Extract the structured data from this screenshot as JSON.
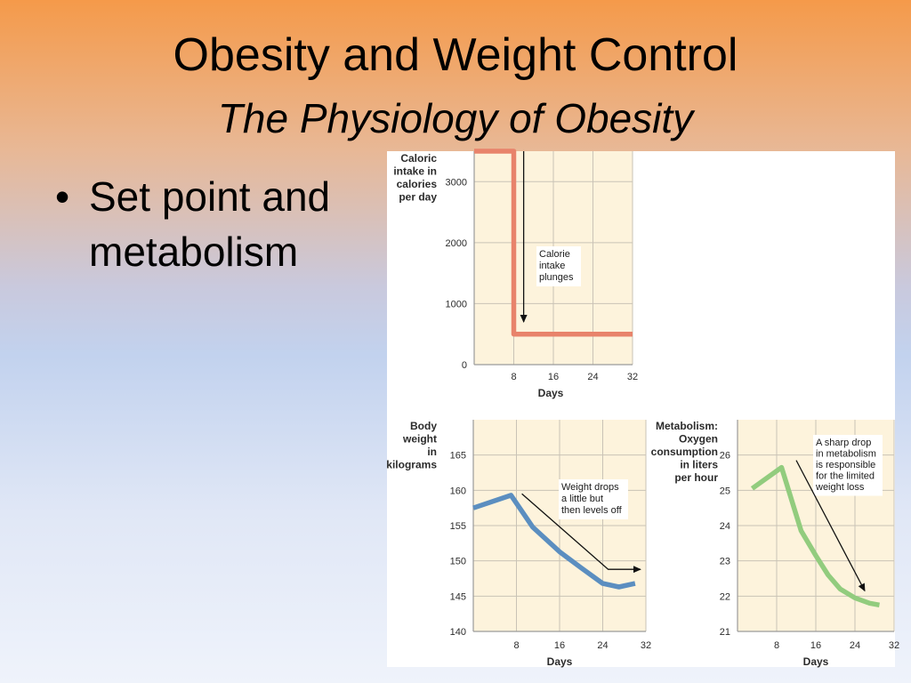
{
  "slide": {
    "title": "Obesity and Weight Control",
    "subtitle": "The Physiology of Obesity",
    "bullets": [
      {
        "marker": "•",
        "text": "Set point and metabolism"
      }
    ]
  },
  "chart_data": [
    {
      "type": "line",
      "ylabel": [
        "Caloric",
        "intake in",
        "calories",
        "per day"
      ],
      "xlabel": "Days",
      "xlim": [
        0,
        32
      ],
      "ylim": [
        0,
        3500
      ],
      "xticks": [
        8,
        16,
        24,
        32
      ],
      "yticks": [
        0,
        1000,
        2000,
        3000
      ],
      "series": [
        {
          "x": [
            0,
            8,
            8,
            32
          ],
          "y": [
            3500,
            3500,
            500,
            500
          ],
          "color": "#e8836b"
        }
      ],
      "annotation": {
        "lines": [
          "Calorie",
          "intake",
          "plunges"
        ],
        "arrow_from": [
          10,
          3500
        ],
        "arrow_to": [
          10,
          700
        ]
      }
    },
    {
      "type": "line",
      "ylabel": [
        "Body",
        "weight",
        "in",
        "kilograms"
      ],
      "xlabel": "Days",
      "xlim": [
        0,
        32
      ],
      "ylim": [
        140,
        170
      ],
      "xticks": [
        8,
        16,
        24,
        32
      ],
      "yticks": [
        140,
        145,
        150,
        155,
        160,
        165
      ],
      "series": [
        {
          "x": [
            0,
            7,
            11,
            16,
            20,
            24,
            27,
            30
          ],
          "y": [
            157.5,
            159.3,
            154.8,
            151.3,
            149,
            146.8,
            146.3,
            146.8
          ],
          "color": "#5b8ec0"
        }
      ],
      "annotation": {
        "lines": [
          "Weight drops",
          "a little but",
          "then levels off"
        ],
        "arrow_path": [
          [
            9,
            159.5
          ],
          [
            25,
            148.8
          ],
          [
            31,
            148.8
          ]
        ]
      }
    },
    {
      "type": "line",
      "ylabel": [
        "Metabolism:",
        "Oxygen",
        "consumption",
        "in liters",
        "per hour"
      ],
      "xlabel": "Days",
      "xlim": [
        0,
        32
      ],
      "ylim": [
        21,
        27
      ],
      "xticks": [
        8,
        16,
        24,
        32
      ],
      "yticks": [
        21,
        22,
        23,
        24,
        25,
        26
      ],
      "series": [
        {
          "x": [
            3,
            9,
            13,
            16,
            18.5,
            21,
            24,
            27,
            29
          ],
          "y": [
            25.05,
            25.65,
            23.85,
            23.15,
            22.6,
            22.2,
            21.95,
            21.8,
            21.75
          ],
          "color": "#92cc7e"
        }
      ],
      "annotation": {
        "lines": [
          "A sharp drop",
          "in metabolism",
          "is responsible",
          "for the limited",
          "weight loss"
        ],
        "arrow_from": [
          12,
          25.85
        ],
        "arrow_to": [
          26,
          22.15
        ]
      }
    }
  ]
}
